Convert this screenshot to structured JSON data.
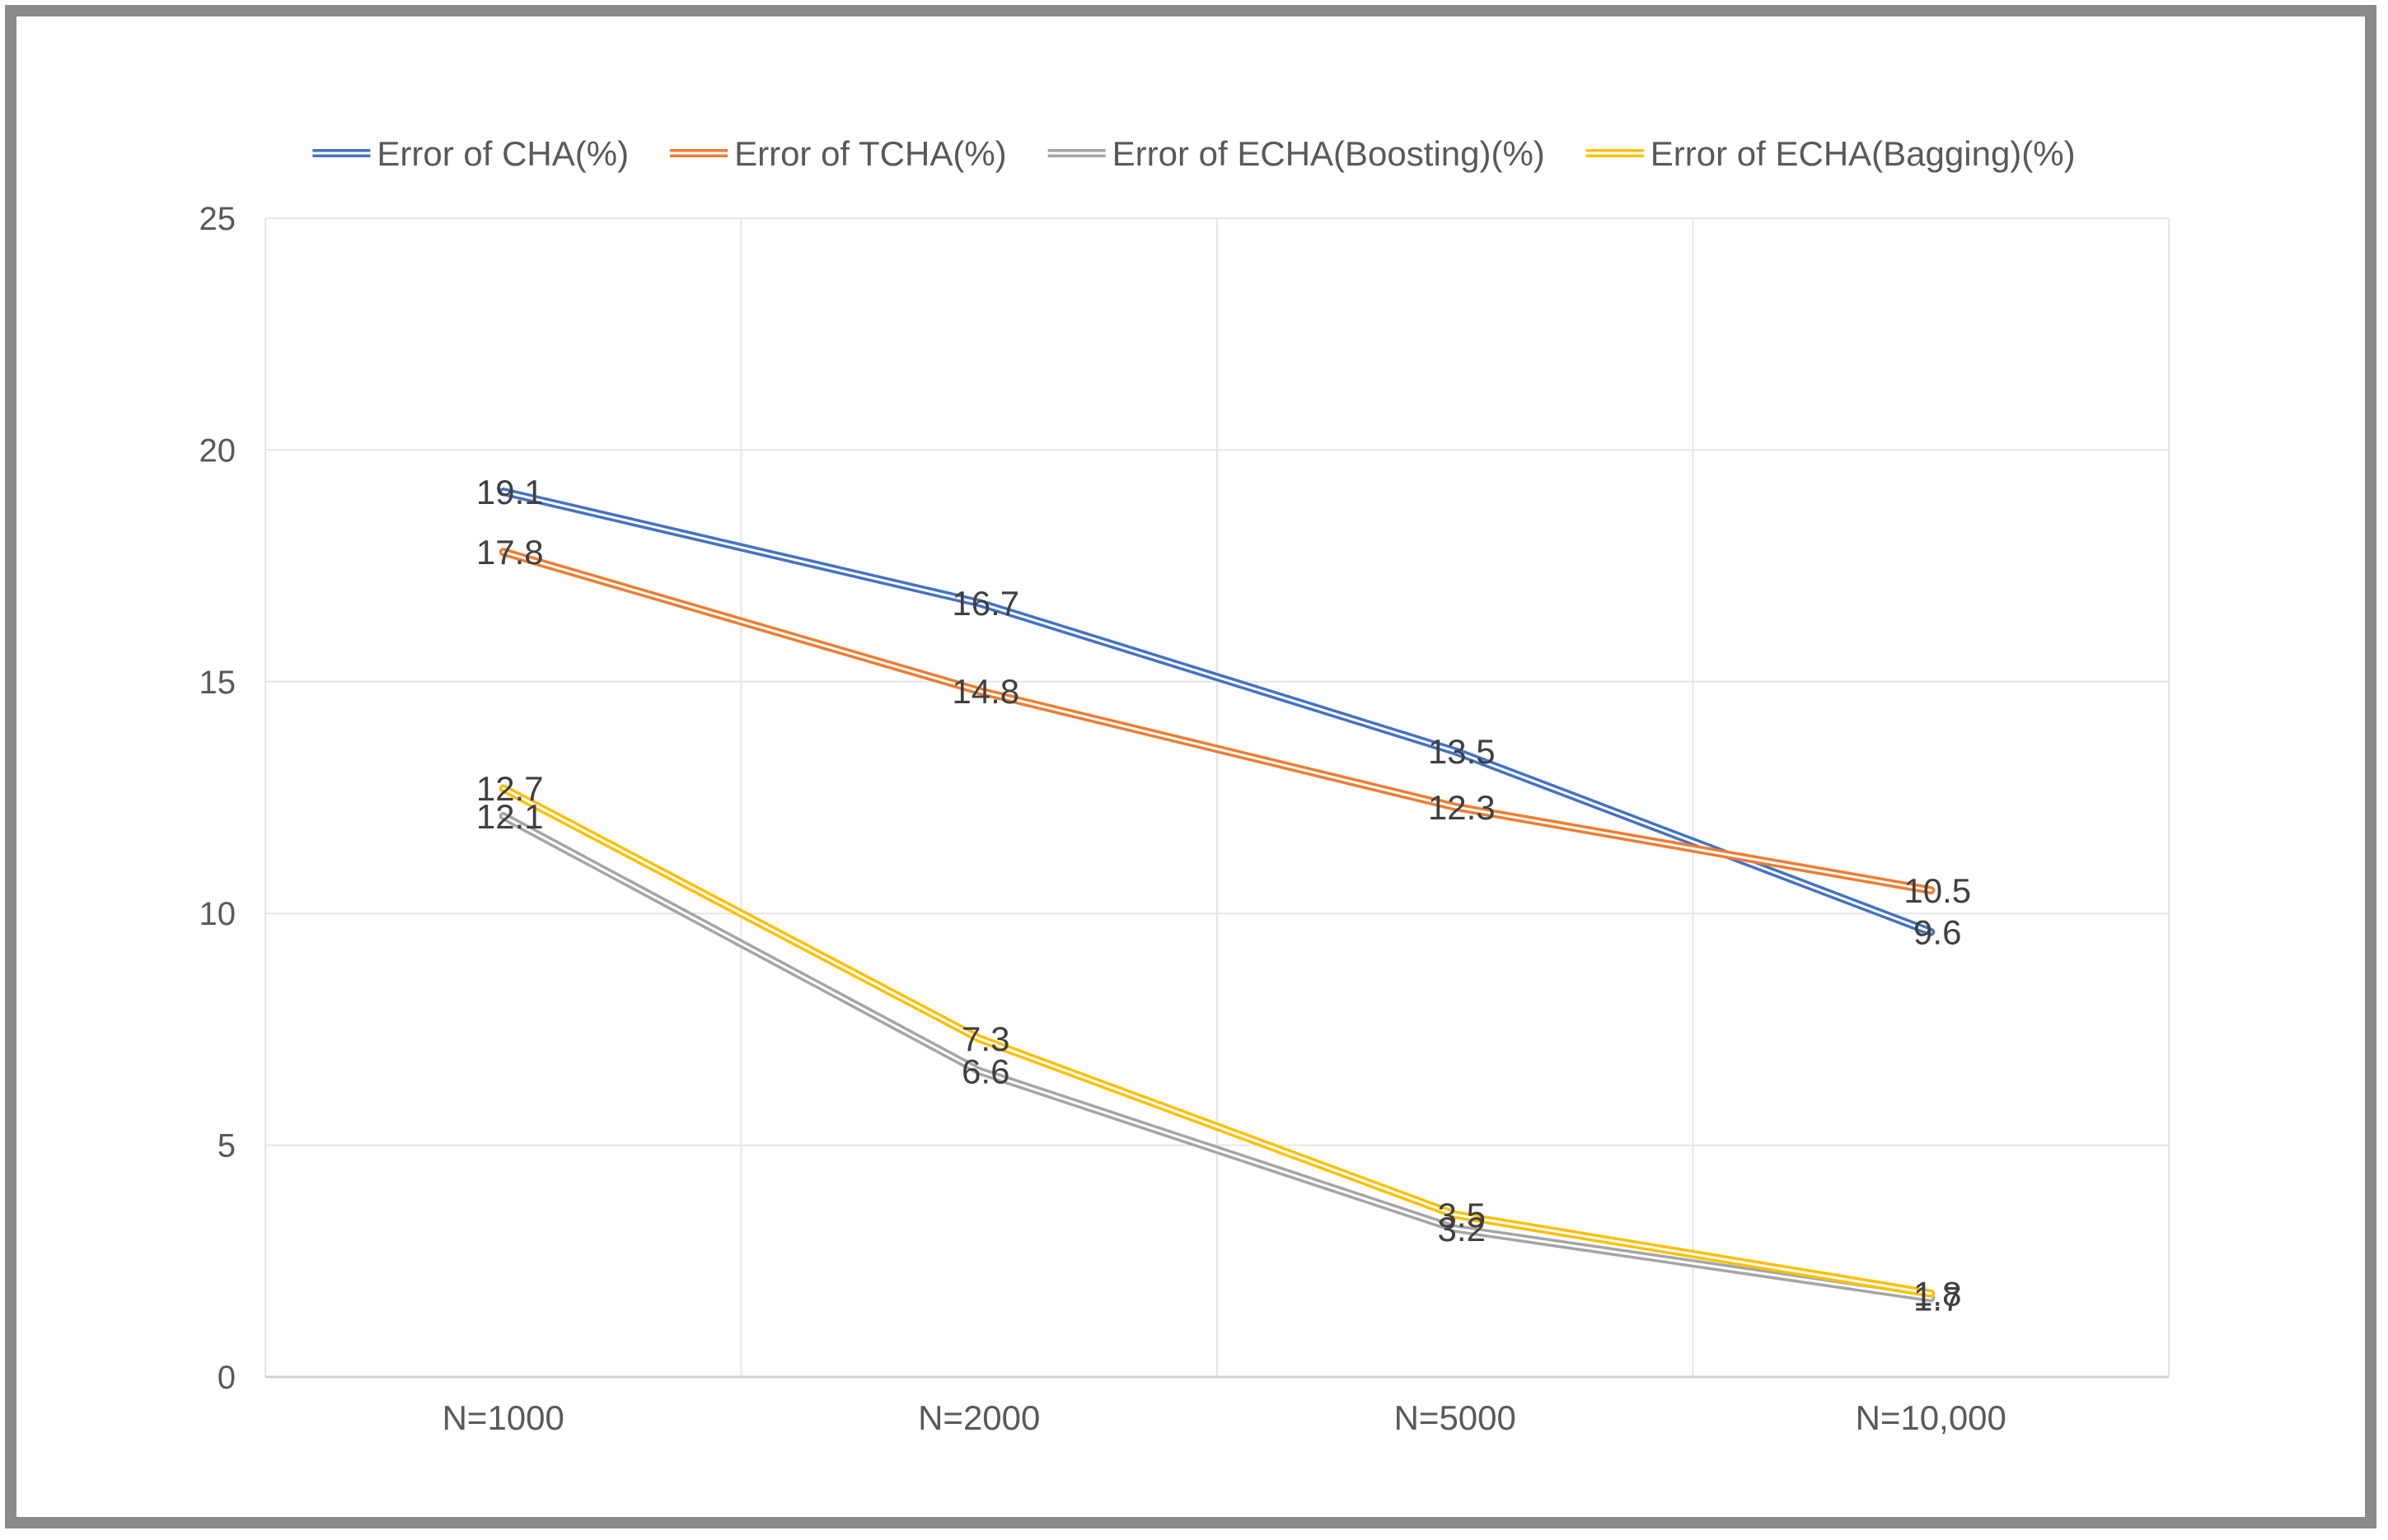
{
  "chart_data": {
    "type": "line",
    "title": "",
    "xlabel": "",
    "ylabel": "",
    "categories": [
      "N=1000",
      "N=2000",
      "N=5000",
      "N=10,000"
    ],
    "ylim": [
      0,
      25
    ],
    "yticks": [
      0,
      5,
      10,
      15,
      20,
      25
    ],
    "grid": true,
    "legend_position": "top",
    "series": [
      {
        "name": "Error of CHA(%)",
        "values": [
          19.1,
          16.7,
          13.5,
          9.6
        ],
        "color": "#4472C4",
        "labels": [
          "19.1",
          "16.7",
          "13.5",
          "9.6"
        ]
      },
      {
        "name": "Error of TCHA(%)",
        "values": [
          17.8,
          14.8,
          12.3,
          10.5
        ],
        "color": "#ED7D31",
        "labels": [
          "17.8",
          "14.8",
          "12.3",
          "10.5"
        ]
      },
      {
        "name": "Error of ECHA(Boosting)(%)",
        "values": [
          12.1,
          6.6,
          3.2,
          1.7
        ],
        "color": "#A5A5A5",
        "labels": [
          "12.1",
          "6.6",
          "3.2",
          "1.7"
        ]
      },
      {
        "name": "Error of ECHA(Bagging)(%)",
        "values": [
          12.7,
          7.3,
          3.5,
          1.8
        ],
        "color": "#FFC000",
        "labels": [
          "12.7",
          "7.3",
          "3.5",
          "1.8"
        ]
      }
    ]
  }
}
